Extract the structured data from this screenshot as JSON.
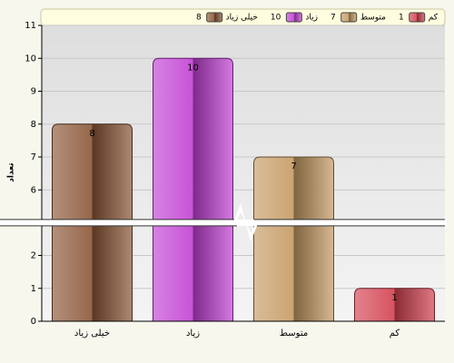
{
  "chart_data": {
    "type": "bar",
    "y_label": "تعداد",
    "categories": [
      "خیلی زیاد",
      "زیاد",
      "متوسط",
      "کم"
    ],
    "values": [
      8,
      10,
      7,
      1
    ],
    "colors": [
      "#8a5535",
      "#c23fd4",
      "#c49a62",
      "#d2404e"
    ],
    "ylim": [
      0,
      11
    ],
    "yticks": [
      0,
      1,
      2,
      6,
      7,
      8,
      9,
      10,
      11
    ],
    "axis_break": [
      2.9,
      5.1
    ],
    "grid": true,
    "legend": "top"
  }
}
